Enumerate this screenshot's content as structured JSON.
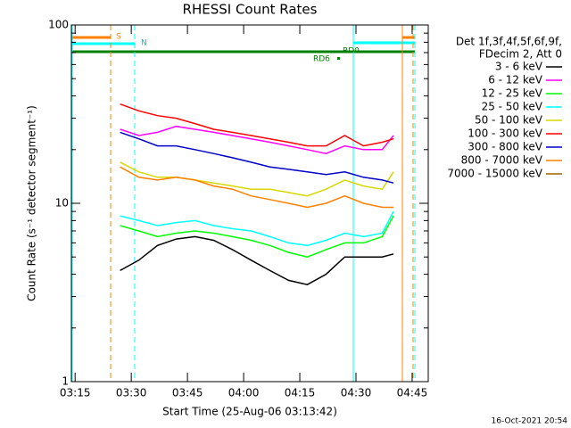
{
  "chart_data": {
    "type": "line",
    "title": "RHESSI Count Rates",
    "xlabel": "Start Time (25-Aug-06 03:13:42)",
    "ylabel": "Count Rate (s⁻¹ detector segment⁻¹)",
    "legend_title": [
      "Det 1f,3f,4f,5f,6f,9f,",
      "FDecim 2, Att 0"
    ],
    "footer": "16-Oct-2021 20:54",
    "annotations": [
      "S",
      "N",
      "RD0",
      "RD6"
    ],
    "log_y": true,
    "xlim": [
      14,
      109.3
    ],
    "ylim": [
      1,
      100
    ],
    "yticks": [
      1,
      10,
      100
    ],
    "xticks": [
      {
        "value": 15,
        "label": "03:15"
      },
      {
        "value": 30,
        "label": "03:30"
      },
      {
        "value": 45,
        "label": "03:45"
      },
      {
        "value": 60,
        "label": "04:00"
      },
      {
        "value": 75,
        "label": "04:15"
      },
      {
        "value": 90,
        "label": "04:30"
      },
      {
        "value": 105,
        "label": "04:45"
      }
    ],
    "x": [
      27,
      32,
      37,
      42,
      47,
      52,
      57,
      62,
      67,
      72,
      77,
      82,
      87,
      92,
      97,
      100
    ],
    "series": [
      {
        "name": "3 - 6 keV",
        "color": "#000000",
        "values": [
          4.2,
          4.8,
          5.8,
          6.3,
          6.5,
          6.2,
          5.5,
          4.8,
          4.2,
          3.7,
          3.5,
          4,
          5,
          5,
          5,
          5.2
        ]
      },
      {
        "name": "6 - 12 keV",
        "color": "#ff00ff",
        "values": [
          26,
          24,
          25,
          27,
          26,
          25,
          24,
          23,
          22,
          21,
          20,
          19,
          21,
          20,
          20,
          24
        ]
      },
      {
        "name": "12 - 25 keV",
        "color": "#00ff00",
        "values": [
          7.5,
          7,
          6.5,
          6.8,
          7,
          6.8,
          6.5,
          6.2,
          5.8,
          5.3,
          5,
          5.5,
          6,
          6,
          6.5,
          8.5
        ]
      },
      {
        "name": "25 - 50 keV",
        "color": "#00ffff",
        "values": [
          8.5,
          8,
          7.5,
          7.8,
          8,
          7.5,
          7.2,
          7,
          6.5,
          6,
          5.8,
          6.2,
          6.8,
          6.5,
          6.8,
          9
        ]
      },
      {
        "name": "50 - 100 keV",
        "color": "#d8d800",
        "values": [
          17,
          15,
          14,
          14,
          13.5,
          13,
          12.5,
          12,
          12,
          11.5,
          11,
          12,
          13.5,
          12.5,
          12,
          15
        ]
      },
      {
        "name": "100 - 300 keV",
        "color": "#ff0000",
        "values": [
          36,
          33,
          31,
          30,
          28,
          26,
          25,
          24,
          23,
          22,
          21,
          21,
          24,
          21,
          22,
          23
        ]
      },
      {
        "name": "300 - 800 keV",
        "color": "#0000c8",
        "values": [
          25,
          23,
          21,
          21,
          20,
          19,
          18,
          17,
          16,
          15.5,
          15,
          14.5,
          15,
          14,
          13.5,
          13
        ]
      },
      {
        "name": "800 - 7000 keV",
        "color": "#ff8000",
        "values": [
          16,
          14,
          13.5,
          14,
          13.5,
          12.5,
          12,
          11,
          10.5,
          10,
          9.5,
          10,
          11,
          10,
          9.5,
          9.5
        ]
      },
      {
        "name": "7000 - 15000 keV",
        "color": "#a06000",
        "values": [
          null,
          null,
          null,
          null,
          null,
          null,
          null,
          null,
          null,
          null,
          null,
          null,
          null,
          null,
          null,
          null
        ]
      }
    ]
  }
}
